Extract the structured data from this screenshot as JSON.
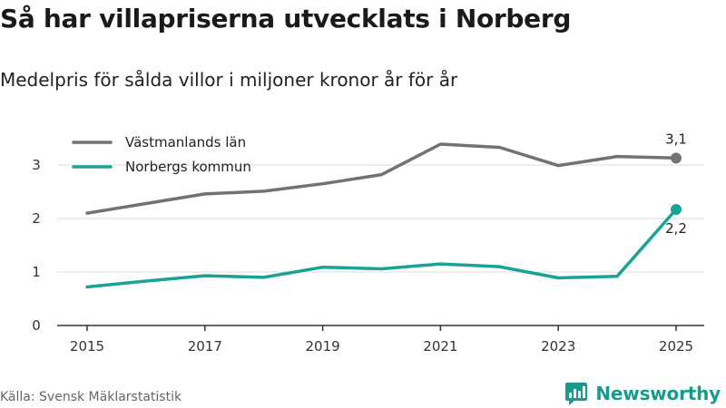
{
  "header": {
    "title": "Så har villapriserna utvecklats i Norberg",
    "subtitle": "Medelpris för sålda villor i miljoner kronor år för år"
  },
  "footer": {
    "source": "Källa: Svensk Mäklarstatistik",
    "brand": "Newsworthy"
  },
  "colors": {
    "series_gray": "#737177",
    "series_teal": "#19a394",
    "grid": "#dddddd",
    "axis": "#333333",
    "brand": "#1a9a8c"
  },
  "chart_data": {
    "type": "line",
    "title": "Så har villapriserna utvecklats i Norberg",
    "subtitle": "Medelpris för sålda villor i miljoner kronor år för år",
    "xlabel": "",
    "ylabel": "",
    "x": [
      2015,
      2016,
      2017,
      2018,
      2019,
      2020,
      2021,
      2022,
      2023,
      2024,
      2025
    ],
    "xticks": [
      2015,
      2017,
      2019,
      2021,
      2023,
      2025
    ],
    "xtick_labels": [
      "2015",
      "2017",
      "2019",
      "2021",
      "2023",
      "2025"
    ],
    "yticks": [
      0,
      1,
      2,
      3
    ],
    "ytick_labels": [
      "0",
      "1",
      "2",
      "3"
    ],
    "xlim": [
      2015,
      2025
    ],
    "ylim": [
      0,
      3.7
    ],
    "grid": true,
    "legend_position": "top-left",
    "series": [
      {
        "name": "Västmanlands län",
        "color": "#737177",
        "values": [
          2.1,
          2.28,
          2.46,
          2.51,
          2.65,
          2.82,
          3.39,
          3.33,
          2.99,
          3.16,
          3.13
        ],
        "end_label": "3,1"
      },
      {
        "name": "Norbergs kommun",
        "color": "#19a394",
        "values": [
          0.72,
          0.83,
          0.93,
          0.9,
          1.09,
          1.06,
          1.15,
          1.1,
          0.89,
          0.92,
          2.17
        ],
        "end_label": "2,2"
      }
    ]
  }
}
